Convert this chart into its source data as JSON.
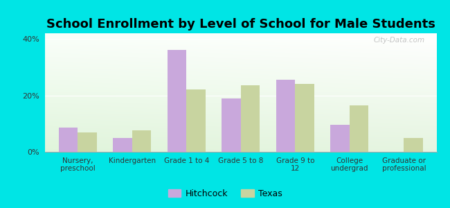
{
  "title": "School Enrollment by Level of School for Male Students",
  "categories": [
    "Nursery,\npreschool",
    "Kindergarten",
    "Grade 1 to 4",
    "Grade 5 to 8",
    "Grade 9 to\n12",
    "College\nundergrad",
    "Graduate or\nprofessional"
  ],
  "hitchcock": [
    8.5,
    5.0,
    36.0,
    19.0,
    25.5,
    9.5,
    0.0
  ],
  "texas": [
    7.0,
    7.5,
    22.0,
    23.5,
    24.0,
    16.5,
    5.0
  ],
  "hitchcock_color": "#c9a8dc",
  "texas_color": "#c8d4a0",
  "ylim": [
    0,
    42
  ],
  "yticks": [
    0,
    20,
    40
  ],
  "ytick_labels": [
    "0%",
    "20%",
    "40%"
  ],
  "background_color": "#00e5e5",
  "legend_hitchcock": "Hitchcock",
  "legend_texas": "Texas",
  "bar_width": 0.35,
  "title_fontsize": 13,
  "watermark": "City-Data.com"
}
